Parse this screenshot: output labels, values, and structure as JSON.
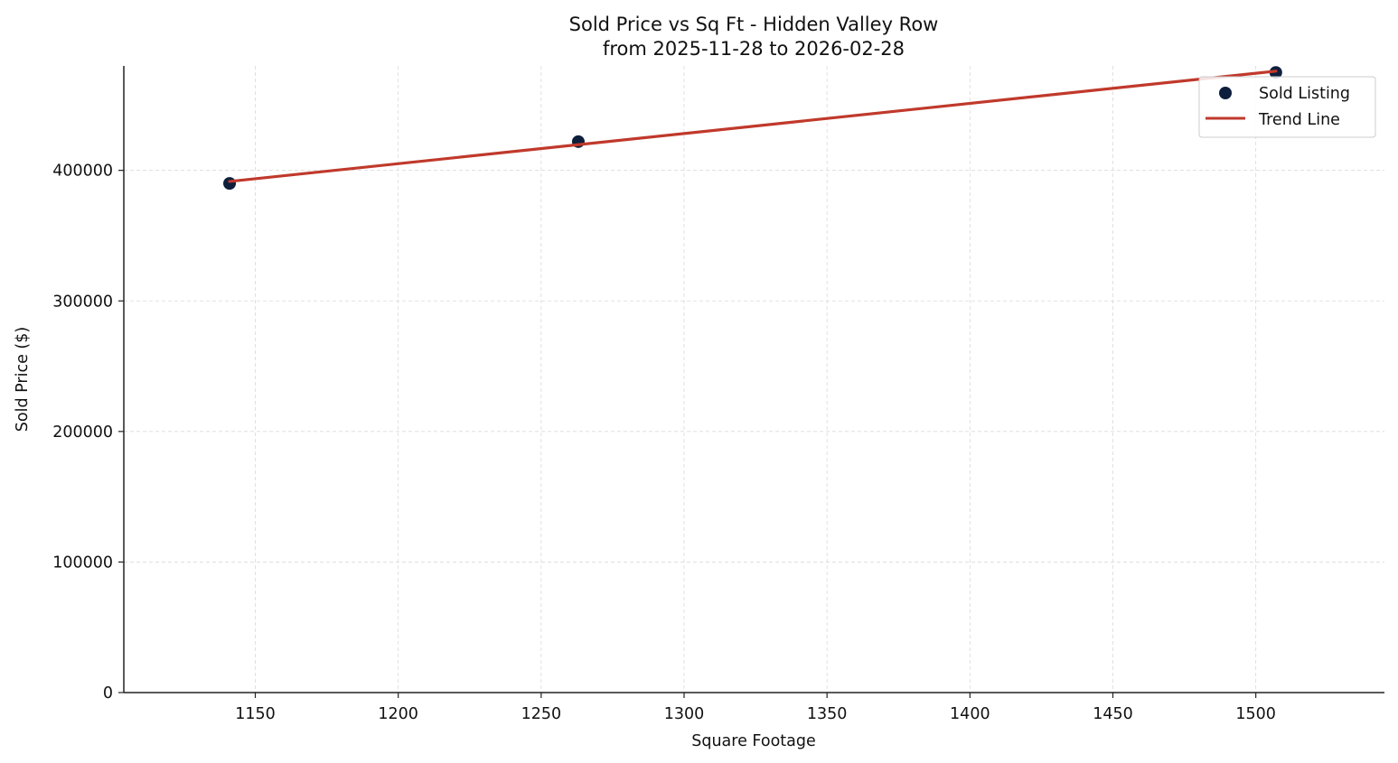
{
  "chart_data": {
    "type": "scatter",
    "title": "Sold Price vs Sq Ft - Hidden Valley Row",
    "subtitle": "from 2025-11-28 to 2026-02-28",
    "xlabel": "Square Footage",
    "ylabel": "Sold Price ($)",
    "xlim": [
      1104,
      1545
    ],
    "ylim": [
      0,
      480000
    ],
    "x_ticks": [
      1150,
      1200,
      1250,
      1300,
      1350,
      1400,
      1450,
      1500
    ],
    "y_ticks": [
      0,
      100000,
      200000,
      300000,
      400000
    ],
    "grid": true,
    "legend_position": "top-right",
    "series": [
      {
        "name": "Sold Listing",
        "kind": "scatter",
        "color": "#0d1f3c",
        "points": [
          {
            "x": 1141,
            "y": 390000
          },
          {
            "x": 1263,
            "y": 422000
          },
          {
            "x": 1507,
            "y": 475000
          }
        ]
      },
      {
        "name": "Trend Line",
        "kind": "line",
        "color": "#c0392b",
        "points": [
          {
            "x": 1141,
            "y": 391500
          },
          {
            "x": 1507,
            "y": 476000
          }
        ]
      }
    ]
  }
}
